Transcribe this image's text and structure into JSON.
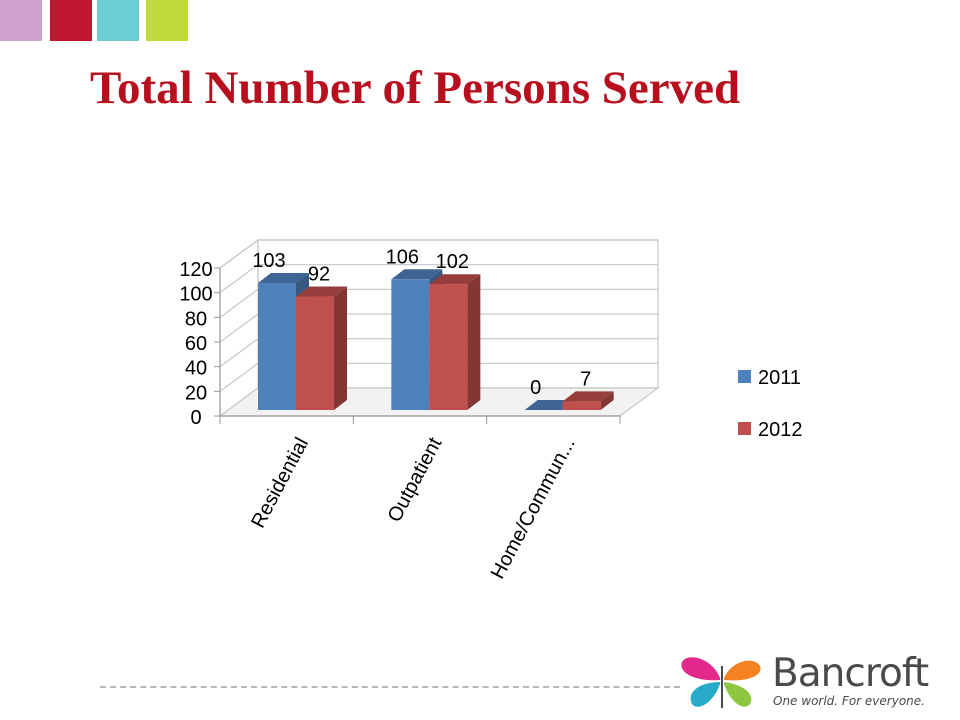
{
  "decoration": {
    "squares": [
      "#cfa0cf",
      "#c0152f",
      "#6ccdd7",
      "#c2d93a"
    ]
  },
  "title": "Total Number of Persons Served",
  "chart_data": {
    "type": "bar",
    "categories": [
      "Residential",
      "Outpatient",
      "Home/Commun..."
    ],
    "series": [
      {
        "name": "2011",
        "values": [
          103,
          106,
          0
        ],
        "color": "#4f81bd"
      },
      {
        "name": "2012",
        "values": [
          92,
          102,
          7
        ],
        "color": "#c0504d"
      }
    ],
    "ylim": [
      0,
      120
    ],
    "yticks": [
      "0",
      "20",
      "40",
      "60",
      "80",
      "100",
      "120"
    ],
    "data_labels": [
      [
        "103",
        "106",
        "0"
      ],
      [
        "92",
        "102",
        "7"
      ]
    ],
    "grid": true,
    "legend": "right",
    "three_d": true
  },
  "logo": {
    "name": "Bancroft",
    "tagline": "One world. For everyone.",
    "colors": [
      "#e2288a",
      "#f58220",
      "#27a9c8",
      "#8dc63f"
    ]
  }
}
